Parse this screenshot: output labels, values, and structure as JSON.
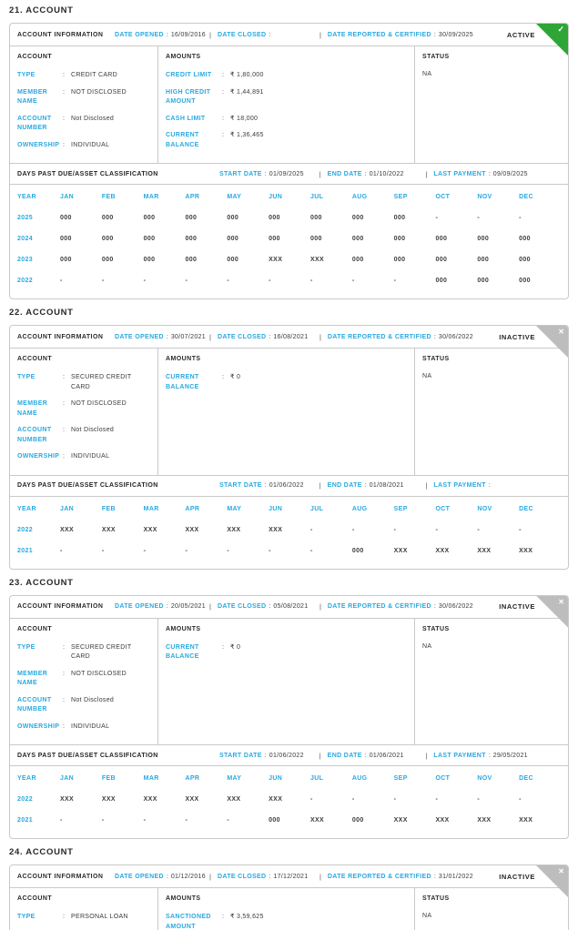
{
  "colors": {
    "accent_cyan": "#29a9e0",
    "active_green": "#2fa536",
    "inactive_gray": "#bdbdbd",
    "border_gray": "#c9c9c9",
    "text_dark": "#2c2c2e"
  },
  "separators": {
    "colon": ":",
    "pipe": "|"
  },
  "icons": {
    "check": "✓",
    "cross": "✕"
  },
  "dpd_columns": {
    "year": "YEAR",
    "months": [
      "JAN",
      "FEB",
      "MAR",
      "APR",
      "MAY",
      "JUN",
      "JUL",
      "AUG",
      "SEP",
      "OCT",
      "NOV",
      "DEC"
    ]
  },
  "accounts": [
    {
      "title": "21. ACCOUNT",
      "info_title": "ACCOUNT INFORMATION",
      "status": "ACTIVE",
      "ribbon": "check",
      "dates": [
        {
          "label": "DATE OPENED",
          "value": "16/09/2016"
        },
        {
          "label": "DATE CLOSED",
          "value": ""
        },
        {
          "label": "DATE REPORTED & CERTIFIED",
          "value": "30/09/2025"
        }
      ],
      "account_col": {
        "header": "ACCOUNT",
        "fields": [
          {
            "label": "TYPE",
            "value": "CREDIT CARD"
          },
          {
            "label": "MEMBER NAME",
            "value": "NOT DISCLOSED"
          },
          {
            "label": "ACCOUNT NUMBER",
            "value": "Not Disclosed"
          },
          {
            "label": "OWNERSHIP",
            "value": "INDIVIDUAL"
          }
        ]
      },
      "amounts_col": {
        "header": "AMOUNTS",
        "fields": [
          {
            "label": "CREDIT LIMIT",
            "value": "₹ 1,80,000"
          },
          {
            "label": "HIGH CREDIT AMOUNT",
            "value": "₹ 1,44,891"
          },
          {
            "label": "CASH LIMIT",
            "value": "₹ 18,000"
          },
          {
            "label": "CURRENT BALANCE",
            "value": "₹ 1,36,465"
          }
        ]
      },
      "status_col": {
        "header": "STATUS",
        "value": "NA"
      },
      "dpd": {
        "title": "DAYS PAST DUE/ASSET CLASSIFICATION",
        "dates": [
          {
            "label": "START DATE",
            "value": "01/09/2025"
          },
          {
            "label": "END DATE",
            "value": "01/10/2022"
          },
          {
            "label": "LAST PAYMENT",
            "value": "09/09/2025"
          }
        ],
        "rows": [
          {
            "year": "2025",
            "values": [
              "000",
              "000",
              "000",
              "000",
              "000",
              "000",
              "000",
              "000",
              "000",
              "-",
              "-",
              "-"
            ]
          },
          {
            "year": "2024",
            "values": [
              "000",
              "000",
              "000",
              "000",
              "000",
              "000",
              "000",
              "000",
              "000",
              "000",
              "000",
              "000"
            ]
          },
          {
            "year": "2023",
            "values": [
              "000",
              "000",
              "000",
              "000",
              "000",
              "XXX",
              "XXX",
              "000",
              "000",
              "000",
              "000",
              "000"
            ]
          },
          {
            "year": "2022",
            "values": [
              "-",
              "-",
              "-",
              "-",
              "-",
              "-",
              "-",
              "-",
              "-",
              "000",
              "000",
              "000"
            ]
          }
        ]
      }
    },
    {
      "title": "22. ACCOUNT",
      "info_title": "ACCOUNT INFORMATION",
      "status": "INACTIVE",
      "ribbon": "cross",
      "dates": [
        {
          "label": "DATE OPENED",
          "value": "30/07/2021"
        },
        {
          "label": "DATE CLOSED",
          "value": "16/08/2021"
        },
        {
          "label": "DATE REPORTED & CERTIFIED",
          "value": "30/06/2022"
        }
      ],
      "account_col": {
        "header": "ACCOUNT",
        "fields": [
          {
            "label": "TYPE",
            "value": "SECURED CREDIT CARD"
          },
          {
            "label": "MEMBER NAME",
            "value": "NOT DISCLOSED"
          },
          {
            "label": "ACCOUNT NUMBER",
            "value": "Not Disclosed"
          },
          {
            "label": "OWNERSHIP",
            "value": "INDIVIDUAL"
          }
        ]
      },
      "amounts_col": {
        "header": "AMOUNTS",
        "fields": [
          {
            "label": "CURRENT BALANCE",
            "value": "₹ 0"
          }
        ]
      },
      "status_col": {
        "header": "STATUS",
        "value": "NA"
      },
      "dpd": {
        "title": "DAYS PAST DUE/ASSET CLASSIFICATION",
        "dates": [
          {
            "label": "START DATE",
            "value": "01/06/2022"
          },
          {
            "label": "END DATE",
            "value": "01/08/2021"
          },
          {
            "label": "LAST PAYMENT",
            "value": ""
          }
        ],
        "rows": [
          {
            "year": "2022",
            "values": [
              "XXX",
              "XXX",
              "XXX",
              "XXX",
              "XXX",
              "XXX",
              "-",
              "-",
              "-",
              "-",
              "-",
              "-"
            ]
          },
          {
            "year": "2021",
            "values": [
              "-",
              "-",
              "-",
              "-",
              "-",
              "-",
              "-",
              "000",
              "XXX",
              "XXX",
              "XXX",
              "XXX"
            ]
          }
        ]
      }
    },
    {
      "title": "23. ACCOUNT",
      "info_title": "ACCOUNT INFORMATION",
      "status": "INACTIVE",
      "ribbon": "cross",
      "dates": [
        {
          "label": "DATE OPENED",
          "value": "20/05/2021"
        },
        {
          "label": "DATE CLOSED",
          "value": "05/08/2021"
        },
        {
          "label": "DATE REPORTED & CERTIFIED",
          "value": "30/06/2022"
        }
      ],
      "account_col": {
        "header": "ACCOUNT",
        "fields": [
          {
            "label": "TYPE",
            "value": "SECURED CREDIT CARD"
          },
          {
            "label": "MEMBER NAME",
            "value": "NOT DISCLOSED"
          },
          {
            "label": "ACCOUNT NUMBER",
            "value": "Not Disclosed"
          },
          {
            "label": "OWNERSHIP",
            "value": "INDIVIDUAL"
          }
        ]
      },
      "amounts_col": {
        "header": "AMOUNTS",
        "fields": [
          {
            "label": "CURRENT BALANCE",
            "value": "₹ 0"
          }
        ]
      },
      "status_col": {
        "header": "STATUS",
        "value": "NA"
      },
      "dpd": {
        "title": "DAYS PAST DUE/ASSET CLASSIFICATION",
        "dates": [
          {
            "label": "START DATE",
            "value": "01/06/2022"
          },
          {
            "label": "END DATE",
            "value": "01/06/2021"
          },
          {
            "label": "LAST PAYMENT",
            "value": "29/05/2021"
          }
        ],
        "rows": [
          {
            "year": "2022",
            "values": [
              "XXX",
              "XXX",
              "XXX",
              "XXX",
              "XXX",
              "XXX",
              "-",
              "-",
              "-",
              "-",
              "-",
              "-"
            ]
          },
          {
            "year": "2021",
            "values": [
              "-",
              "-",
              "-",
              "-",
              "-",
              "000",
              "XXX",
              "000",
              "XXX",
              "XXX",
              "XXX",
              "XXX"
            ]
          }
        ]
      }
    },
    {
      "title": "24. ACCOUNT",
      "info_title": "ACCOUNT INFORMATION",
      "status": "INACTIVE",
      "ribbon": "cross",
      "dates": [
        {
          "label": "DATE OPENED",
          "value": "01/12/2016"
        },
        {
          "label": "DATE CLOSED",
          "value": "17/12/2021"
        },
        {
          "label": "DATE REPORTED & CERTIFIED",
          "value": "31/01/2022"
        }
      ],
      "account_col": {
        "header": "ACCOUNT",
        "fields": [
          {
            "label": "TYPE",
            "value": "PERSONAL LOAN"
          }
        ]
      },
      "amounts_col": {
        "header": "AMOUNTS",
        "fields": [
          {
            "label": "SANCTIONED AMOUNT",
            "value": "₹ 3,59,625"
          }
        ]
      },
      "status_col": {
        "header": "STATUS",
        "value": "NA"
      },
      "dpd": null
    }
  ]
}
